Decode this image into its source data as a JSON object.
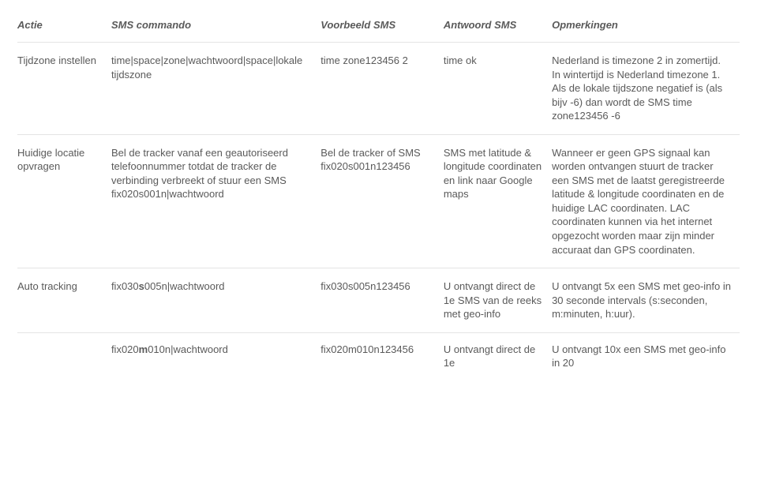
{
  "headers": {
    "col0": "Actie",
    "col1": "SMS commando",
    "col2": "Voorbeeld SMS",
    "col3": "Antwoord SMS",
    "col4": "Opmerkingen"
  },
  "col_widths": {
    "col0": "13%",
    "col1": "29%",
    "col2": "17%",
    "col3": "15%",
    "col4": "26%"
  },
  "rows": [
    {
      "actie": "Tijdzone instellen",
      "commando": "time|space|zone|wachtwoord|space|lokale tijdszone",
      "voorbeeld": "time zone123456 2",
      "antwoord": "time ok",
      "opmerkingen": "Nederland is timezone 2 in zomertijd. In wintertijd is Nederland timezone 1. Als de lokale tijdszone negatief is (als bijv -6) dan wordt de SMS time zone123456 -6"
    },
    {
      "actie": "Huidige locatie opvragen",
      "commando": "Bel de tracker vanaf een geautoriseerd telefoonnummer totdat de tracker de verbinding verbreekt of stuur een SMS fix020s001n|wachtwoord",
      "voorbeeld": "Bel de tracker of SMS fix020s001n123456",
      "antwoord": "SMS met latitude & longitude coordinaten en link naar Google maps",
      "opmerkingen": "Wanneer er geen GPS signaal kan worden ontvangen stuurt de  tracker een SMS met de laatst geregistreerde latitude & longitude coordinaten en de huidige LAC coordinaten. LAC coordinaten kunnen via het internet opgezocht worden maar zijn minder accuraat dan GPS coordinaten."
    },
    {
      "actie": "Auto tracking",
      "commando_pre": "fix030",
      "commando_bold1": "s",
      "commando_mid": "005n|wachtwoord",
      "voorbeeld": "fix030s005n123456",
      "antwoord": "U ontvangt direct de 1e SMS van de reeks met geo-info",
      "opmerkingen": "U ontvangt 5x een SMS met geo-info in 30 seconde intervals (s:seconden, m:minuten, h:uur)."
    }
  ],
  "subrow": {
    "commando_pre": "fix020",
    "commando_bold1": "m",
    "commando_mid": "010n|wachtwoord",
    "voorbeeld": "fix020m010n123456",
    "antwoord": "U ontvangt direct de 1e",
    "opmerkingen": "U ontvangt 10x een SMS met geo-info in 20"
  }
}
